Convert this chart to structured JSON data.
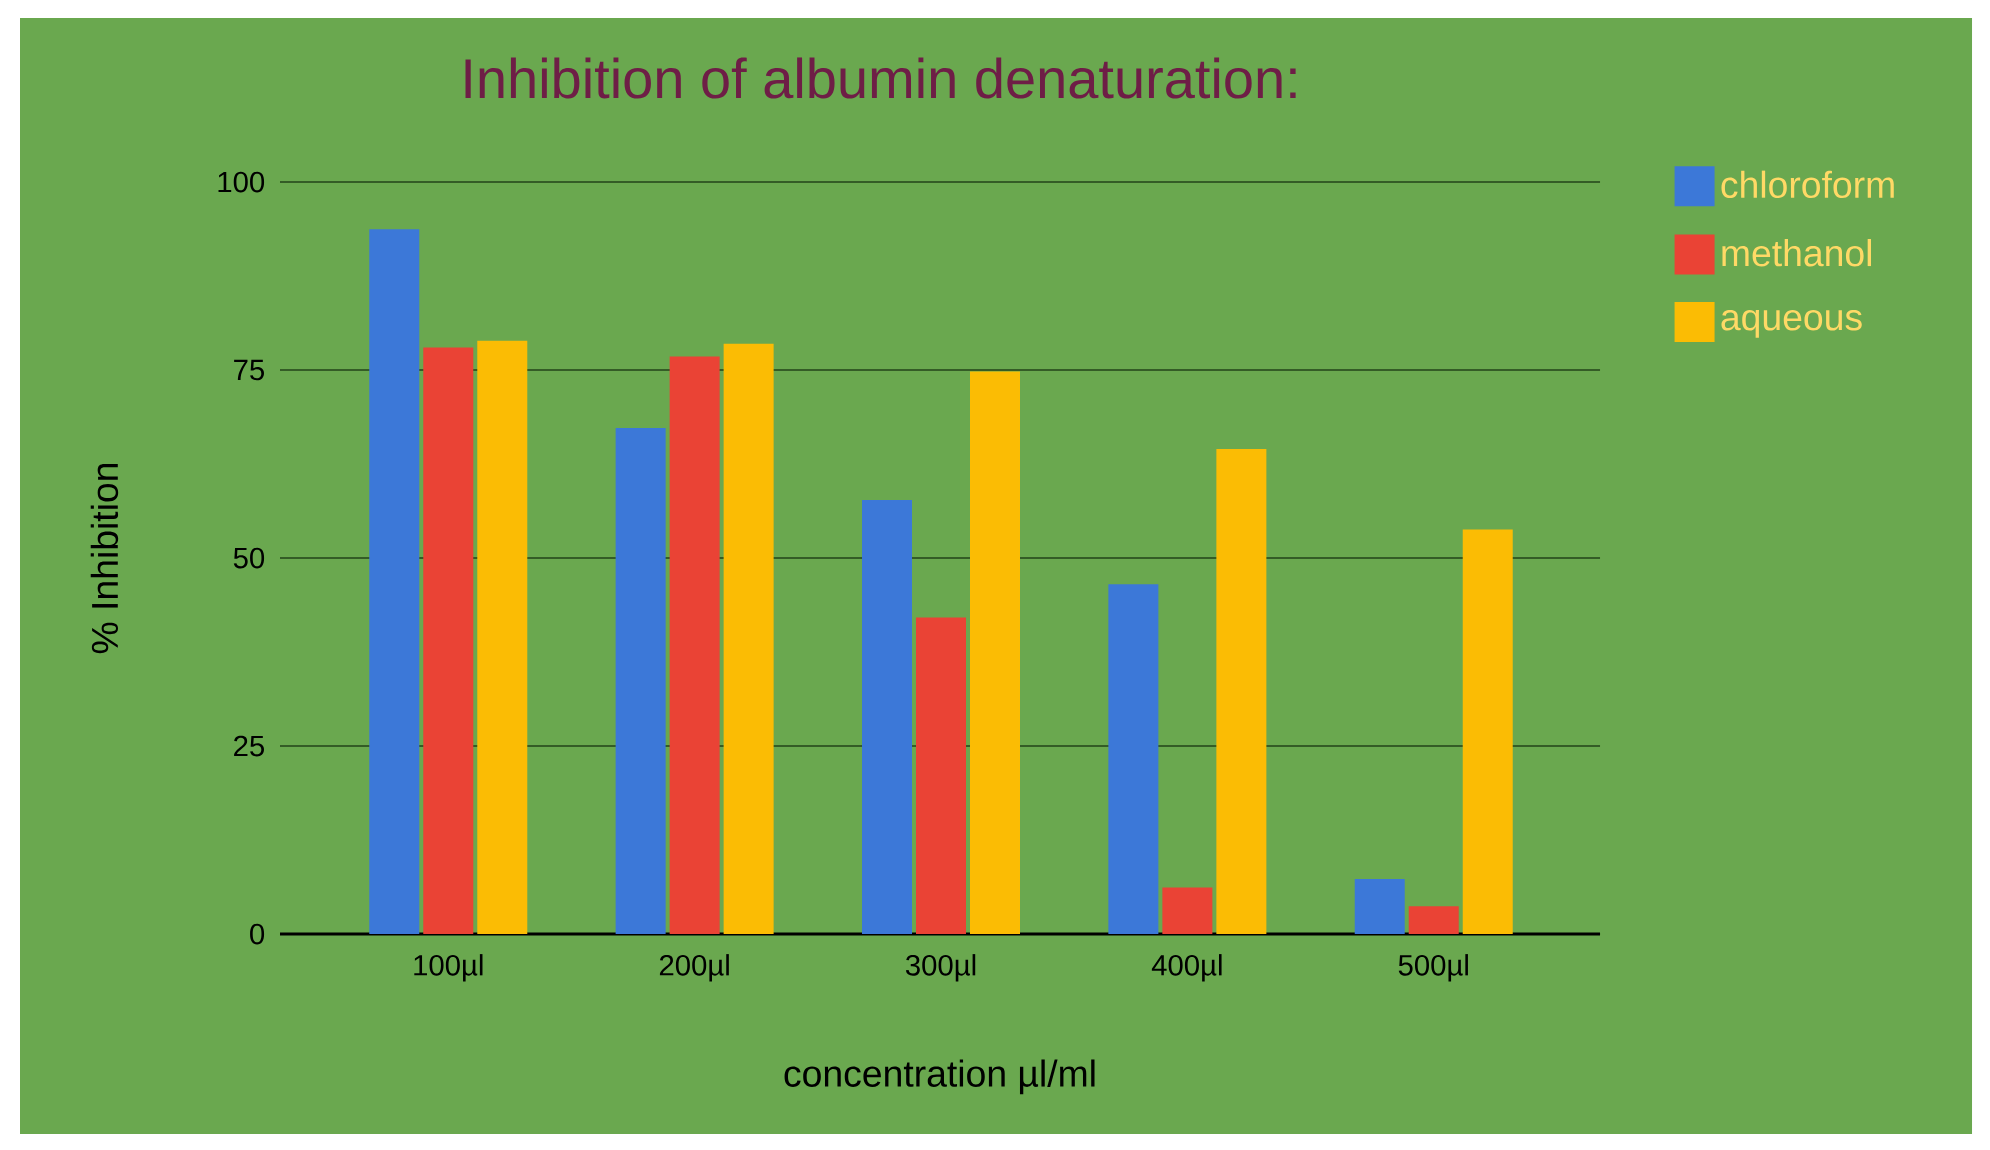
{
  "chart_data": {
    "type": "bar",
    "title": "Inhibition of albumin denaturation:",
    "xlabel": "concentration µl/ml",
    "ylabel": "%  Inhibition",
    "categories": [
      "100µl",
      "200µl",
      "300µl",
      "400µl",
      "500µl"
    ],
    "series": [
      {
        "name": "chloroform",
        "color": "#3c78d8",
        "values": [
          93.7,
          67.3,
          57.7,
          46.5,
          7.3
        ]
      },
      {
        "name": "methanol",
        "color": "#ea4335",
        "values": [
          78.0,
          76.8,
          42.1,
          6.2,
          3.7
        ]
      },
      {
        "name": "aqueous",
        "color": "#fbbc04",
        "values": [
          78.9,
          78.5,
          74.8,
          64.5,
          53.8
        ]
      }
    ],
    "ylim": [
      0,
      100
    ],
    "yticks": [
      0,
      25,
      50,
      75,
      100
    ],
    "grid": "y",
    "legend": "right"
  }
}
